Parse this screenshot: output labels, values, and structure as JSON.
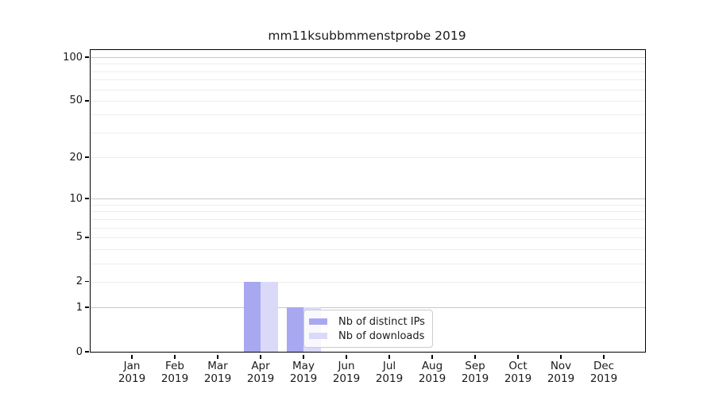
{
  "title": "mm11ksubbmmenstprobe 2019",
  "chart_data": {
    "type": "bar",
    "title": "mm11ksubbmmenstprobe 2019",
    "categories": [
      "Jan",
      "Feb",
      "Mar",
      "Apr",
      "May",
      "Jun",
      "Jul",
      "Aug",
      "Sep",
      "Oct",
      "Nov",
      "Dec"
    ],
    "year_label": "2019",
    "series": [
      {
        "name": "Nb of distinct IPs",
        "color": "#a8a8f0",
        "values": [
          0,
          0,
          0,
          2,
          1,
          0,
          0,
          0,
          0,
          0,
          0,
          0
        ]
      },
      {
        "name": "Nb of downloads",
        "color": "#dadaf8",
        "values": [
          0,
          0,
          0,
          2,
          1,
          0,
          0,
          0,
          0,
          0,
          0,
          0
        ]
      }
    ],
    "xlabel": "",
    "ylabel": "",
    "yscale": "log1p",
    "ylim": [
      0,
      112
    ],
    "y_ticks": [
      0,
      1,
      2,
      5,
      10,
      20,
      50,
      100
    ],
    "grid": {
      "major_values": [
        1,
        10,
        100
      ],
      "minor_values": [
        2,
        3,
        4,
        5,
        6,
        7,
        8,
        9,
        20,
        30,
        40,
        50,
        60,
        70,
        80,
        90
      ]
    },
    "legend": {
      "position": "lower center-left inside plot",
      "labels": [
        "Nb of distinct IPs",
        "Nb of downloads"
      ]
    },
    "colors": {
      "background": "#ffffff",
      "spine": "#000000",
      "text": "#1a1a1a",
      "grid_major": "#c8c8c8",
      "grid_minor": "#ededed",
      "legend_border": "#cccccc"
    }
  }
}
